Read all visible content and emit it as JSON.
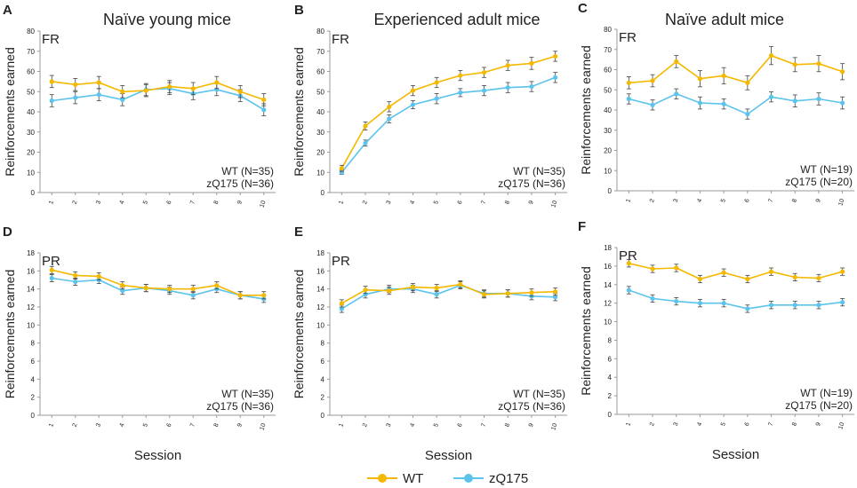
{
  "figure": {
    "col_titles": [
      "Naïve young mice",
      "Experienced adult mice",
      "Naïve adult mice"
    ],
    "ylabel": "Reinforcements earned",
    "xlabel": "Session"
  },
  "legend": {
    "wt_label": "WT",
    "zq_label": "zQ175",
    "wt_color": "#f5b800",
    "zq_color": "#5bc3ec"
  },
  "chart_data": [
    {
      "type": "line",
      "panel": "A",
      "mode": "FR",
      "title": "Naïve young mice",
      "xlabel": "",
      "ylabel": "Reinforcements earned",
      "ylim": [
        0,
        80
      ],
      "yticks": [
        0,
        10,
        20,
        30,
        40,
        50,
        60,
        70,
        80
      ],
      "x": [
        1,
        2,
        3,
        4,
        5,
        6,
        7,
        8,
        9,
        10
      ],
      "series": [
        {
          "name": "WT",
          "n_label": "WT (N=35)",
          "values": [
            55,
            53.5,
            54.5,
            50,
            50.5,
            52.5,
            51.5,
            54.5,
            50,
            46
          ],
          "errors": [
            3,
            3,
            3,
            3,
            3,
            3,
            3,
            3,
            3,
            3
          ]
        },
        {
          "name": "zQ175",
          "n_label": "zQ175 (N=36)",
          "values": [
            45.5,
            47,
            48.5,
            46,
            51,
            51.5,
            49,
            51,
            48,
            41
          ],
          "errors": [
            3,
            3,
            3,
            3,
            3,
            3,
            3,
            3,
            3,
            3
          ]
        }
      ]
    },
    {
      "type": "line",
      "panel": "B",
      "mode": "FR",
      "title": "Experienced adult mice",
      "xlabel": "",
      "ylabel": "Reinforcements earned",
      "ylim": [
        0,
        80
      ],
      "yticks": [
        0,
        10,
        20,
        30,
        40,
        50,
        60,
        70,
        80
      ],
      "x": [
        1,
        2,
        3,
        4,
        5,
        6,
        7,
        8,
        9,
        10
      ],
      "series": [
        {
          "name": "WT",
          "n_label": "WT (N=35)",
          "values": [
            12,
            33,
            42.5,
            50.5,
            54.5,
            58,
            59.5,
            63,
            64,
            67.5
          ],
          "errors": [
            1.5,
            2,
            2.5,
            2.5,
            2.5,
            2.5,
            2.5,
            2.5,
            3,
            2.5
          ]
        },
        {
          "name": "zQ175",
          "n_label": "zQ175 (N=36)",
          "values": [
            10,
            24.5,
            36.5,
            43.5,
            46.5,
            49.5,
            50.5,
            52,
            52.5,
            57
          ],
          "errors": [
            1,
            1.5,
            2,
            2,
            2.5,
            2,
            2.5,
            2.5,
            2.5,
            2.5
          ]
        }
      ]
    },
    {
      "type": "line",
      "panel": "C",
      "mode": "FR",
      "title": "Naïve adult mice",
      "xlabel": "",
      "ylabel": "Reinforcements earned",
      "ylim": [
        0,
        80
      ],
      "yticks": [
        0,
        10,
        20,
        30,
        40,
        50,
        60,
        70,
        80
      ],
      "x": [
        1,
        2,
        3,
        4,
        5,
        6,
        7,
        8,
        9,
        10
      ],
      "series": [
        {
          "name": "WT",
          "n_label": "WT (N=19)",
          "values": [
            53.5,
            54.5,
            64,
            55.5,
            57,
            53.5,
            67,
            62.5,
            63,
            59
          ],
          "errors": [
            3,
            3,
            3,
            4,
            4,
            3.5,
            4.5,
            3.5,
            4,
            4
          ]
        },
        {
          "name": "zQ175",
          "n_label": "zQ175 (N=20)",
          "values": [
            45.5,
            42.5,
            48,
            43.5,
            43,
            38,
            46.5,
            44.5,
            45.5,
            43.5
          ],
          "errors": [
            2.5,
            2.5,
            2.5,
            3,
            2.5,
            2.5,
            2.5,
            3,
            3,
            3
          ]
        }
      ]
    },
    {
      "type": "line",
      "panel": "D",
      "mode": "PR",
      "title": "",
      "xlabel": "Session",
      "ylabel": "Reinforcements earned",
      "ylim": [
        0,
        18
      ],
      "yticks": [
        0,
        2,
        4,
        6,
        8,
        10,
        12,
        14,
        16,
        18
      ],
      "x": [
        1,
        2,
        3,
        4,
        5,
        6,
        7,
        8,
        9,
        10
      ],
      "series": [
        {
          "name": "WT",
          "n_label": "WT (N=35)",
          "values": [
            16.1,
            15.5,
            15.4,
            14.4,
            14.1,
            14,
            14,
            14.4,
            13.3,
            13.3
          ],
          "errors": [
            0.4,
            0.4,
            0.4,
            0.4,
            0.4,
            0.4,
            0.4,
            0.4,
            0.4,
            0.4
          ]
        },
        {
          "name": "zQ175",
          "n_label": "zQ175 (N=36)",
          "values": [
            15.2,
            14.8,
            15,
            13.8,
            14.1,
            13.8,
            13.3,
            14,
            13.3,
            12.9
          ],
          "errors": [
            0.4,
            0.4,
            0.4,
            0.4,
            0.4,
            0.4,
            0.4,
            0.4,
            0.4,
            0.4
          ]
        }
      ]
    },
    {
      "type": "line",
      "panel": "E",
      "mode": "PR",
      "title": "",
      "xlabel": "Session",
      "ylabel": "Reinforcements earned",
      "ylim": [
        0,
        18
      ],
      "yticks": [
        0,
        2,
        4,
        6,
        8,
        10,
        12,
        14,
        16,
        18
      ],
      "x": [
        1,
        2,
        3,
        4,
        5,
        6,
        7,
        8,
        9,
        10
      ],
      "series": [
        {
          "name": "WT",
          "n_label": "WT (N=35)",
          "values": [
            12.4,
            13.9,
            13.8,
            14.2,
            14.1,
            14.5,
            13.4,
            13.5,
            13.6,
            13.7
          ],
          "errors": [
            0.4,
            0.4,
            0.4,
            0.4,
            0.4,
            0.4,
            0.4,
            0.4,
            0.4,
            0.4
          ]
        },
        {
          "name": "zQ175",
          "n_label": "zQ175 (N=36)",
          "values": [
            11.8,
            13.4,
            14,
            14,
            13.4,
            14.4,
            13.5,
            13.5,
            13.2,
            13.1
          ],
          "errors": [
            0.4,
            0.4,
            0.4,
            0.4,
            0.4,
            0.4,
            0.4,
            0.4,
            0.4,
            0.4
          ]
        }
      ]
    },
    {
      "type": "line",
      "panel": "F",
      "mode": "PR",
      "title": "",
      "xlabel": "Session",
      "ylabel": "Reinforcements earned",
      "ylim": [
        0,
        18
      ],
      "yticks": [
        0,
        2,
        4,
        6,
        8,
        10,
        12,
        14,
        16,
        18
      ],
      "x": [
        1,
        2,
        3,
        4,
        5,
        6,
        7,
        8,
        9,
        10
      ],
      "series": [
        {
          "name": "WT",
          "n_label": "WT (N=19)",
          "values": [
            16.3,
            15.7,
            15.8,
            14.6,
            15.3,
            14.6,
            15.4,
            14.8,
            14.7,
            15.4
          ],
          "errors": [
            0.4,
            0.4,
            0.4,
            0.4,
            0.4,
            0.4,
            0.4,
            0.4,
            0.4,
            0.4
          ]
        },
        {
          "name": "zQ175",
          "n_label": "zQ175 (N=20)",
          "values": [
            13.4,
            12.5,
            12.2,
            12,
            12,
            11.4,
            11.8,
            11.8,
            11.8,
            12.1
          ],
          "errors": [
            0.4,
            0.4,
            0.4,
            0.4,
            0.4,
            0.4,
            0.4,
            0.4,
            0.4,
            0.4
          ]
        }
      ]
    }
  ]
}
